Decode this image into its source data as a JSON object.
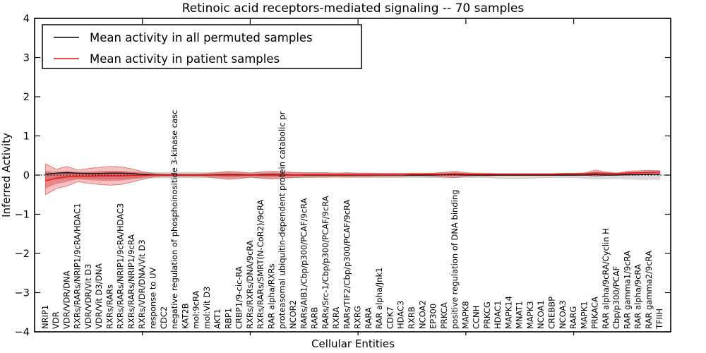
{
  "chart_data": {
    "type": "line",
    "title": "Retinoic acid receptors-mediated signaling -- 70 samples",
    "xlabel": "Cellular Entities",
    "ylabel": "Inferred Activity",
    "ylim": [
      -4,
      4
    ],
    "yticks": [
      4,
      3,
      2,
      1,
      0,
      -1,
      -2,
      -3,
      -4
    ],
    "x_major_ticks": [
      10,
      20,
      30,
      40,
      50
    ],
    "grid": false,
    "legend_position": "upper left",
    "reference_line": {
      "y": 0,
      "style": "dotted",
      "color": "#000000"
    },
    "categories": [
      "NRIP1",
      "VDR",
      "VDR/VDR/DNA",
      "RXRs/RARs/NRIP1/9cRA/HDAC1",
      "VDR/VDR/Vit D3",
      "VDR/Vit D3/DNA",
      "RXRs/RARs",
      "RXRs/RARs/NRIP1/9cRA/HDAC3",
      "RXRs/RARs/NRIP1/9cRA",
      "RXRs/VDR/DNA/Vit D3",
      "response to UV",
      "CDC2",
      "negative regulation of phosphoinositide 3-kinase casc",
      "KAT2B",
      "mol:9cRA",
      "mol:Vit D3",
      "AKT1",
      "RBP1",
      "CRBP1/9-cic-RA",
      "RXRs/RXRs/DNA/9cRA",
      "RXRs/RARs/SMRT(N-CoR2)/9cRA",
      "RAR alpha/RXRs",
      "proteasomal ubiquitin-dependent protein catabolic pr",
      "NCOR2",
      "RARs/AIB1/Cbp/p300/PCAF/9cRA",
      "RARB",
      "RARs/Src-1/Cbp/p300/PCAF/9cRA",
      "RXRA",
      "RARs/TIF2/Cbp/p300/PCAF/9cRA",
      "RXRG",
      "RARA",
      "RAR alpha/Jnk1",
      "CDK7",
      "HDAC3",
      "RXRB",
      "NCOA2",
      "EP300",
      "PRKCA",
      "positive regulation of DNA binding",
      "MAPK8",
      "CCNH",
      "PRKCG",
      "HDAC1",
      "MAPK14",
      "MNAT1",
      "MAPK3",
      "NCOA1",
      "CREBBP",
      "NCOA3",
      "RARG",
      "MAPK1",
      "PRKACA",
      "RAR alpha/9cRA/Cyclin H",
      "Cbp/p300/PCAF",
      "RAR gamma1/9cRA",
      "RAR alpha/9cRA",
      "RAR gamma2/9cRA",
      "TFIIH"
    ],
    "series": [
      {
        "name": "Mean activity in all permuted samples",
        "color": "#000000",
        "values": [
          0.02,
          0.05,
          0.06,
          0.05,
          0.04,
          0.04,
          0.05,
          0.05,
          0.04,
          0.02,
          0.01,
          0,
          0,
          0,
          0,
          0,
          0.01,
          0.01,
          0.01,
          0,
          0.01,
          0.01,
          0.01,
          0,
          0,
          0,
          0,
          0,
          0,
          0,
          0,
          0,
          0,
          0,
          0,
          0,
          0,
          0.01,
          0.01,
          0,
          0,
          0,
          0,
          0,
          0,
          0,
          0,
          0,
          0,
          0,
          0,
          0.01,
          0,
          0,
          0.01,
          0.01,
          0.02,
          0.02
        ],
        "band": {
          "color": "#999999",
          "upper": [
            0.1,
            0.09,
            0.09,
            0.08,
            0.08,
            0.08,
            0.08,
            0.08,
            0.08,
            0.07,
            0.07,
            0.06,
            0.06,
            0.06,
            0.06,
            0.06,
            0.06,
            0.07,
            0.06,
            0.06,
            0.06,
            0.07,
            0.06,
            0.06,
            0.06,
            0.06,
            0.06,
            0.05,
            0.05,
            0.05,
            0.05,
            0.05,
            0.05,
            0.05,
            0.05,
            0.05,
            0.05,
            0.06,
            0.06,
            0.05,
            0.05,
            0.05,
            0.05,
            0.05,
            0.05,
            0.05,
            0.05,
            0.05,
            0.05,
            0.05,
            0.06,
            0.07,
            0.06,
            0.06,
            0.07,
            0.07,
            0.08,
            0.08
          ],
          "lower": [
            -0.12,
            -0.1,
            -0.09,
            -0.08,
            -0.08,
            -0.08,
            -0.09,
            -0.09,
            -0.08,
            -0.08,
            -0.07,
            -0.07,
            -0.07,
            -0.07,
            -0.07,
            -0.07,
            -0.07,
            -0.08,
            -0.07,
            -0.07,
            -0.07,
            -0.08,
            -0.07,
            -0.07,
            -0.07,
            -0.06,
            -0.06,
            -0.06,
            -0.06,
            -0.06,
            -0.06,
            -0.06,
            -0.06,
            -0.06,
            -0.06,
            -0.06,
            -0.06,
            -0.07,
            -0.07,
            -0.06,
            -0.06,
            -0.06,
            -0.08,
            -0.09,
            -0.09,
            -0.08,
            -0.07,
            -0.06,
            -0.06,
            -0.06,
            -0.08,
            -0.1,
            -0.09,
            -0.08,
            -0.1,
            -0.11,
            -0.11,
            -0.1
          ]
        }
      },
      {
        "name": "Mean activity in patient samples",
        "color": "#f01010",
        "values": [
          -0.15,
          -0.08,
          -0.04,
          -0.03,
          -0.03,
          -0.02,
          -0.02,
          -0.02,
          -0.01,
          -0.01,
          0,
          0,
          0,
          0,
          0,
          0,
          0,
          0,
          0,
          0,
          0,
          0,
          0,
          0,
          0.01,
          0.01,
          0.01,
          0.01,
          0.01,
          0.01,
          0.01,
          0.01,
          0.01,
          0.01,
          0.02,
          0.02,
          0.02,
          0.02,
          0.03,
          0.02,
          0.02,
          0.02,
          0.02,
          0.02,
          0.02,
          0.02,
          0.02,
          0.02,
          0.03,
          0.03,
          0.03,
          0.05,
          0.04,
          0.03,
          0.05,
          0.06,
          0.07,
          0.08
        ],
        "band": {
          "color": "#e03030",
          "upper": [
            0.29,
            0.15,
            0.22,
            0.13,
            0.17,
            0.2,
            0.22,
            0.21,
            0.16,
            0.09,
            0.04,
            0.03,
            0.03,
            0.03,
            0.03,
            0.04,
            0.07,
            0.1,
            0.08,
            0.05,
            0.08,
            0.1,
            0.09,
            0.07,
            0.06,
            0.06,
            0.06,
            0.05,
            0.06,
            0.05,
            0.05,
            0.04,
            0.04,
            0.04,
            0.04,
            0.04,
            0.05,
            0.07,
            0.1,
            0.06,
            0.04,
            0.04,
            0.03,
            0.03,
            0.03,
            0.03,
            0.03,
            0.03,
            0.04,
            0.04,
            0.05,
            0.13,
            0.08,
            0.05,
            0.1,
            0.11,
            0.12,
            0.11
          ],
          "lower": [
            -0.5,
            -0.35,
            -0.28,
            -0.17,
            -0.21,
            -0.24,
            -0.26,
            -0.24,
            -0.18,
            -0.11,
            -0.05,
            -0.03,
            -0.03,
            -0.03,
            -0.03,
            -0.04,
            -0.08,
            -0.11,
            -0.09,
            -0.05,
            -0.08,
            -0.1,
            -0.08,
            -0.06,
            -0.05,
            -0.05,
            -0.05,
            -0.04,
            -0.05,
            -0.04,
            -0.04,
            -0.03,
            -0.03,
            -0.03,
            -0.02,
            -0.02,
            -0.03,
            -0.05,
            -0.06,
            -0.03,
            -0.02,
            -0.02,
            -0.01,
            -0.01,
            -0.01,
            -0.01,
            -0.01,
            -0.01,
            -0.01,
            -0.01,
            0.0,
            -0.03,
            -0.01,
            0.0,
            0.0,
            0.01,
            0.01,
            0.02
          ]
        }
      }
    ]
  }
}
